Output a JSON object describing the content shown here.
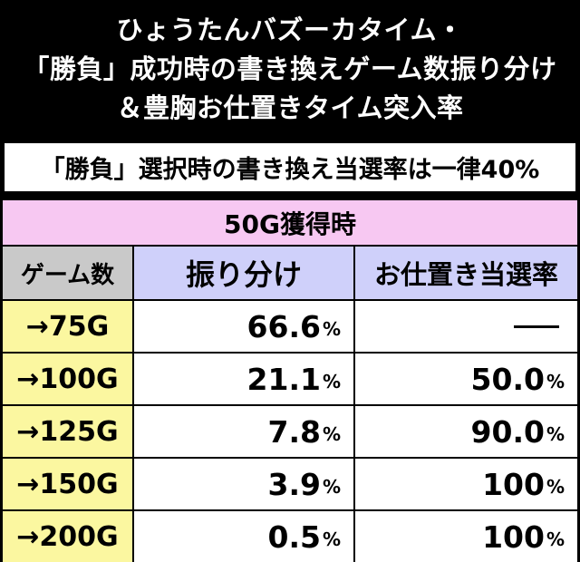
{
  "title": {
    "line1": "ひょうたんバズーカタイム・",
    "line2": "「勝負」成功時の書き換えゲーム数振り分け",
    "line3": "＆豊胸お仕置きタイム突入率"
  },
  "subtitle": "「勝負」選択時の書き換え当選率は一律40%",
  "table": {
    "header": "50G獲得時",
    "columns": [
      "ゲーム数",
      "振り分け",
      "お仕置き当選率"
    ],
    "rows": [
      {
        "games": "→75G",
        "dist": "66.6",
        "dist_unit": "%",
        "rate": "",
        "rate_unit": ""
      },
      {
        "games": "→100G",
        "dist": "21.1",
        "dist_unit": "%",
        "rate": "50.0",
        "rate_unit": "%"
      },
      {
        "games": "→125G",
        "dist": "7.8",
        "dist_unit": "%",
        "rate": "90.0",
        "rate_unit": "%"
      },
      {
        "games": "→150G",
        "dist": "3.9",
        "dist_unit": "%",
        "rate": "100",
        "rate_unit": "%"
      },
      {
        "games": "→200G",
        "dist": "0.5",
        "dist_unit": "%",
        "rate": "100",
        "rate_unit": "%"
      }
    ]
  },
  "colors": {
    "header_bg": "#f7c8f2",
    "column_header_bg": "#cfd0fa",
    "games_header_bg": "#c9c9c9",
    "row_label_bg": "#fbf7a0"
  }
}
